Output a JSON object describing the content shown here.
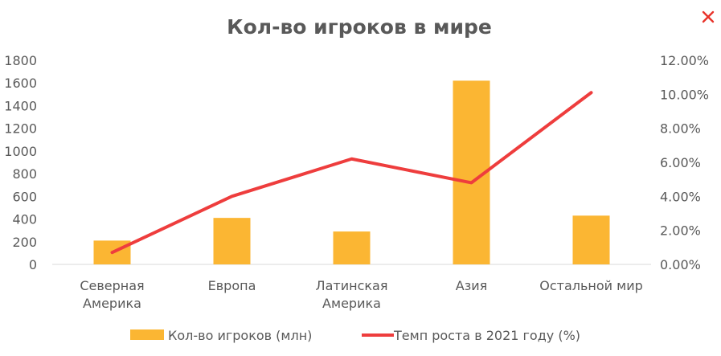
{
  "window": {
    "close_icon": "close-icon",
    "close_color": "#E8332A"
  },
  "chart_data": {
    "type": "bar+line",
    "title": "Кол-во игроков в мире",
    "categories": [
      "Северная Америка",
      "Европа",
      "Латинская Америка",
      "Азия",
      "Остальной мир"
    ],
    "series": [
      {
        "name": "Кол-во игроков (млн)",
        "type": "bar",
        "axis": "left",
        "color": "#FBB633",
        "values": [
          210,
          410,
          290,
          1620,
          430
        ]
      },
      {
        "name": "Темп роста в 2021 году (%)",
        "type": "line",
        "axis": "right",
        "color": "#EE3D3D",
        "values": [
          0.7,
          4.0,
          6.2,
          4.8,
          10.1
        ]
      }
    ],
    "y_left": {
      "lim": [
        0,
        1800
      ],
      "ticks": [
        "0",
        "200",
        "400",
        "600",
        "800",
        "1000",
        "1200",
        "1400",
        "1600",
        "1800"
      ]
    },
    "y_right": {
      "lim": [
        0,
        12
      ],
      "ticks": [
        "0.00%",
        "2.00%",
        "4.00%",
        "6.00%",
        "8.00%",
        "10.00%",
        "12.00%"
      ]
    },
    "grid": false,
    "legend_position": "bottom"
  }
}
